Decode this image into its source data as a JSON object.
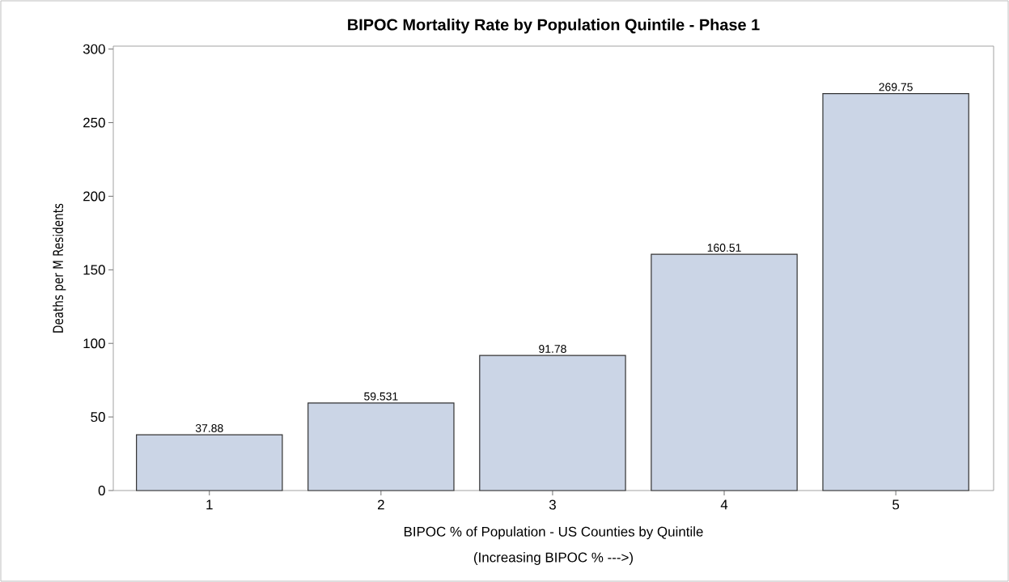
{
  "chart_data": {
    "type": "bar",
    "title": "BIPOC Mortality Rate by Population Quintile - Phase 1",
    "xlabel": "BIPOC % of Population - US Counties by Quintile",
    "annotations": [
      "(Increasing BIPOC % --->)"
    ],
    "ylabel": "Deaths per M Residents",
    "categories": [
      "1",
      "2",
      "3",
      "4",
      "5"
    ],
    "values": [
      37.88,
      59.531,
      91.78,
      160.51,
      269.75
    ],
    "color": "#cbd5e6",
    "ylim": [
      0,
      302
    ],
    "yticks": [
      0,
      50,
      100,
      150,
      200,
      250,
      300
    ],
    "data_labels": true,
    "grid": false
  }
}
